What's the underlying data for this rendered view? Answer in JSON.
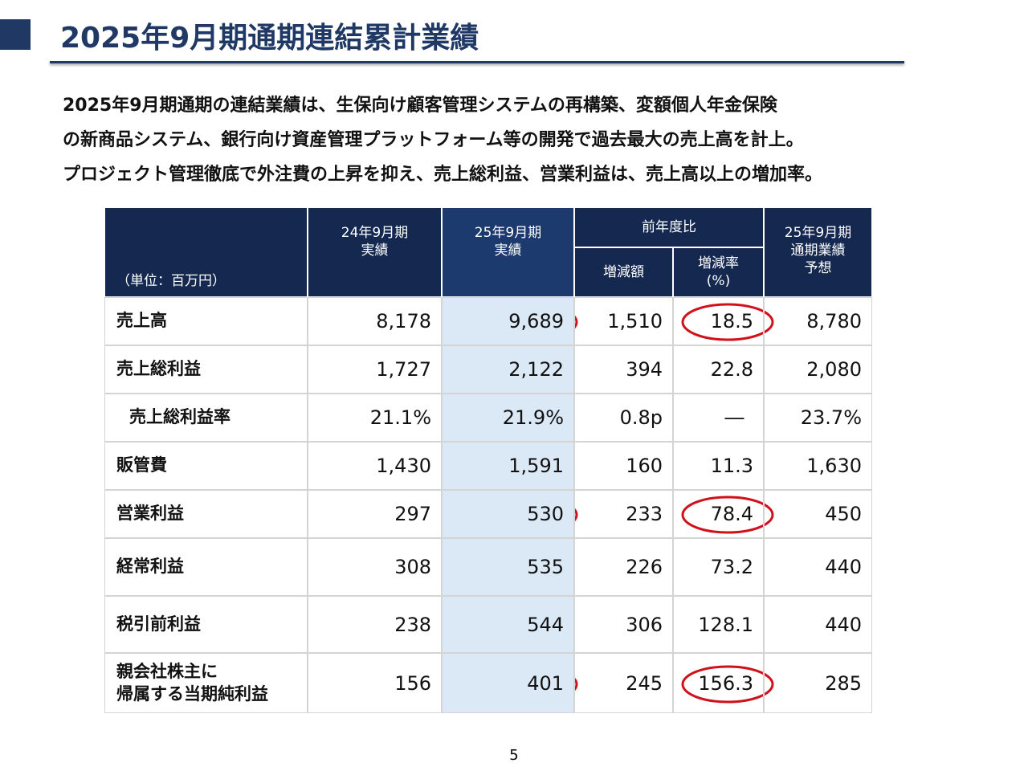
{
  "header": {
    "title": "2025年9月期通期連結累計業績"
  },
  "summary": [
    "2025年9月期通期の連結業績は、生保向け顧客管理システムの再構築、変額個人年金保険",
    "の新商品システム、銀行向け資産管理プラットフォーム等の開発で過去最大の売上高を計上。",
    "プロジェクト管理徹底で外注費の上昇を抑え、売上総利益、営業利益は、売上高以上の増加率。"
  ],
  "table": {
    "unit": "（単位：百万円）",
    "columns": [
      [
        "24年9月期",
        "実績"
      ],
      [
        "25年9月期",
        "実績"
      ],
      [
        "増減額"
      ],
      [
        "増減率",
        "(%)"
      ],
      [
        "25年9月期",
        "通期業績",
        "予想"
      ]
    ],
    "group": "前年度比",
    "rows": [
      {
        "label": [
          "売上高"
        ],
        "cells": [
          "8,178",
          "9,689",
          "1,510",
          "18.5",
          "8,780"
        ]
      },
      {
        "label": [
          "売上総利益"
        ],
        "cells": [
          "1,727",
          "2,122",
          "394",
          "22.8",
          "2,080"
        ]
      },
      {
        "label": [
          "売上総利益率"
        ],
        "cells": [
          "21.1%",
          "21.9%",
          "0.8p",
          "―",
          "23.7%"
        ]
      },
      {
        "label": [
          "販管費"
        ],
        "cells": [
          "1,430",
          "1,591",
          "160",
          "11.3",
          "1,630"
        ]
      },
      {
        "label": [
          "営業利益"
        ],
        "cells": [
          "297",
          "530",
          "233",
          "78.4",
          "450"
        ]
      },
      {
        "label": [
          "経常利益"
        ],
        "cells": [
          "308",
          "535",
          "226",
          "73.2",
          "440"
        ]
      },
      {
        "label": [
          "税引前利益"
        ],
        "cells": [
          "238",
          "544",
          "306",
          "128.1",
          "440"
        ]
      },
      {
        "label": [
          "親会社株主に",
          "帰属する当期純利益"
        ],
        "cells": [
          "156",
          "401",
          "245",
          "156.3",
          "285"
        ]
      }
    ]
  },
  "footer": {
    "page": "5"
  }
}
